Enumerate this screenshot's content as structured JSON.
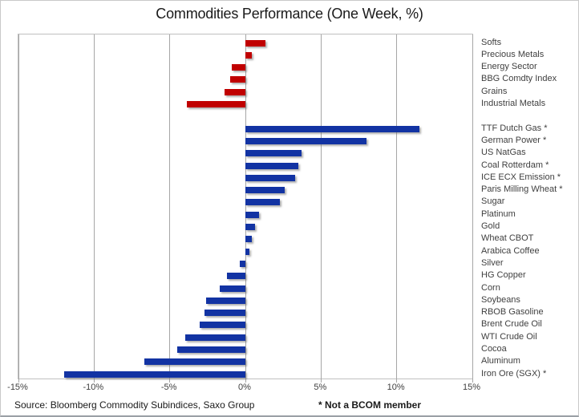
{
  "title": "Commodities Performance (One Week, %)",
  "footer": {
    "source": "Source: Bloomberg Commodity Subindices, Saxo Group",
    "note": "* Not a BCOM member"
  },
  "colors": {
    "sector_bar": "#c00000",
    "commodity_bar": "#1233a3",
    "gridline": "#a6a6a6"
  },
  "chart_data": {
    "type": "bar",
    "orientation": "horizontal",
    "title": "Commodities Performance (One Week, %)",
    "xlabel": "",
    "ylabel": "",
    "xlim": [
      -15,
      15
    ],
    "x_tick_values": [
      -15,
      -10,
      -5,
      0,
      5,
      10,
      15
    ],
    "x_tick_labels": [
      "-15%",
      "-10%",
      "-5%",
      "0%",
      "5%",
      "10%",
      "15%"
    ],
    "grid": true,
    "legend": false,
    "groups": [
      {
        "name": "bcom-sector-indices",
        "color": "#c00000",
        "items": [
          {
            "label": "Softs",
            "value": 1.3
          },
          {
            "label": "Precious Metals",
            "value": 0.4
          },
          {
            "label": "Energy Sector",
            "value": -0.9
          },
          {
            "label": "BBG Comdty Index",
            "value": -1.0
          },
          {
            "label": "Grains",
            "value": -1.4
          },
          {
            "label": "Industrial Metals",
            "value": -3.85
          }
        ]
      },
      {
        "name": "single-commodities",
        "color": "#1233a3",
        "items": [
          {
            "label": "TTF Dutch Gas *",
            "value": 11.5
          },
          {
            "label": "German Power *",
            "value": 8.0
          },
          {
            "label": "US NatGas",
            "value": 3.7
          },
          {
            "label": "Coal Rotterdam *",
            "value": 3.5
          },
          {
            "label": "ICE ECX Emission *",
            "value": 3.3
          },
          {
            "label": "Paris Milling Wheat *",
            "value": 2.6
          },
          {
            "label": "Sugar",
            "value": 2.3
          },
          {
            "label": "Platinum",
            "value": 0.9
          },
          {
            "label": "Gold",
            "value": 0.65
          },
          {
            "label": "Wheat CBOT",
            "value": 0.4
          },
          {
            "label": "Arabica Coffee",
            "value": 0.25
          },
          {
            "label": "Silver",
            "value": -0.35
          },
          {
            "label": "HG Copper",
            "value": -1.2
          },
          {
            "label": "Corn",
            "value": -1.7
          },
          {
            "label": "Soybeans",
            "value": -2.6
          },
          {
            "label": "RBOB Gasoline",
            "value": -2.7
          },
          {
            "label": "Brent Crude Oil",
            "value": -3.0
          },
          {
            "label": "WTI Crude Oil",
            "value": -4.0
          },
          {
            "label": "Cocoa",
            "value": -4.5
          },
          {
            "label": "Aluminum",
            "value": -6.7
          },
          {
            "label": "Iron Ore (SGX) *",
            "value": -12.0
          }
        ]
      }
    ]
  }
}
